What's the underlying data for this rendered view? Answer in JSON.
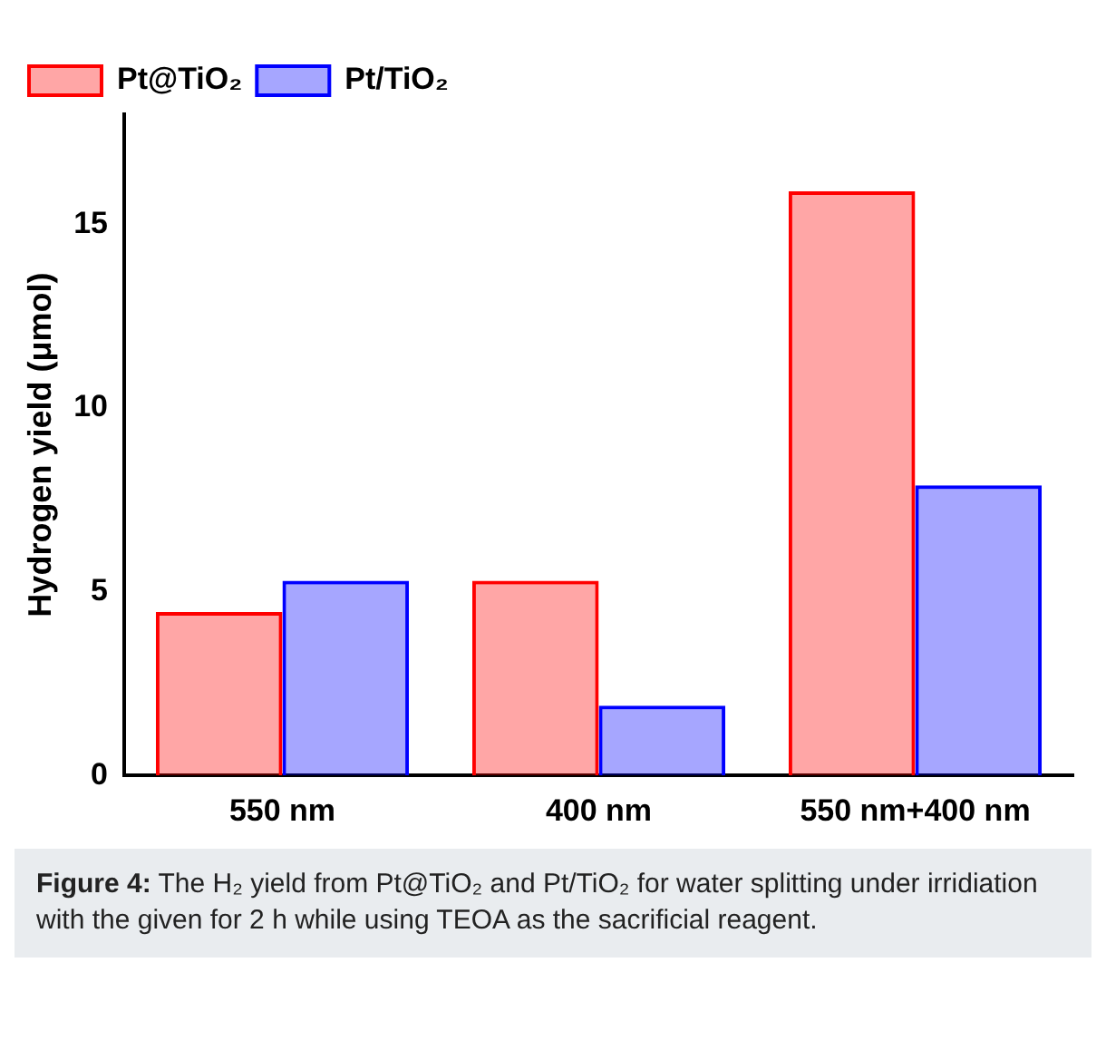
{
  "chart_data": {
    "type": "bar",
    "ylabel": "Hydrogen yield (μmol)",
    "categories": [
      "550 nm",
      "400 nm",
      "550 nm+400 nm"
    ],
    "series": [
      {
        "name": "Pt@TiO₂",
        "color": "#ff0000",
        "values": [
          4.45,
          5.3,
          15.9
        ]
      },
      {
        "name": "Pt/TiO₂",
        "color": "#0000ff",
        "values": [
          5.3,
          1.9,
          7.9
        ]
      }
    ],
    "ylim": [
      0,
      18
    ],
    "yticks": [
      0,
      5,
      10,
      15
    ],
    "grid": false,
    "legend": "top left",
    "annotations": [
      "Figure 4: The H₂ yield from Pt@TiO₂ and Pt/TiO₂ for water splitting under irridiation with the given for 2 h while using TEOA as the sacrificial reagent."
    ]
  }
}
